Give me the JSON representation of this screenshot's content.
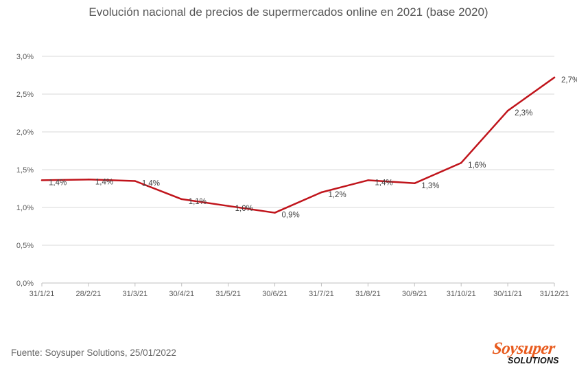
{
  "chart_data": {
    "type": "line",
    "title": "Evolución nacional de precios de supermercados online en 2021  (base 2020)",
    "categories": [
      "31/1/21",
      "28/2/21",
      "31/3/21",
      "30/4/21",
      "31/5/21",
      "30/6/21",
      "31/7/21",
      "31/8/21",
      "30/9/21",
      "31/10/21",
      "30/11/21",
      "31/12/21"
    ],
    "values": [
      1.36,
      1.37,
      1.35,
      1.11,
      1.02,
      0.93,
      1.2,
      1.36,
      1.32,
      1.59,
      2.28,
      2.72
    ],
    "data_labels": [
      "1,4%",
      "1,4%",
      "1,4%",
      "1,1%",
      "1,0%",
      "0,9%",
      "1,2%",
      "1,4%",
      "1,3%",
      "1,6%",
      "2,3%",
      "2,7%"
    ],
    "yticks": [
      "0,0%",
      "0,5%",
      "1,0%",
      "1,5%",
      "2,0%",
      "2,5%",
      "3,0%"
    ],
    "ylim": [
      0,
      3.0
    ],
    "xlabel": "",
    "ylabel": "",
    "grid": true,
    "line_color": "#c0141b"
  },
  "footer": {
    "source": "Fuente: Soysuper Solutions, 25/01/2022"
  },
  "logo": {
    "top": "Soysuper",
    "bottom": "SOLUTIONS",
    "color": "#e85b1e"
  }
}
